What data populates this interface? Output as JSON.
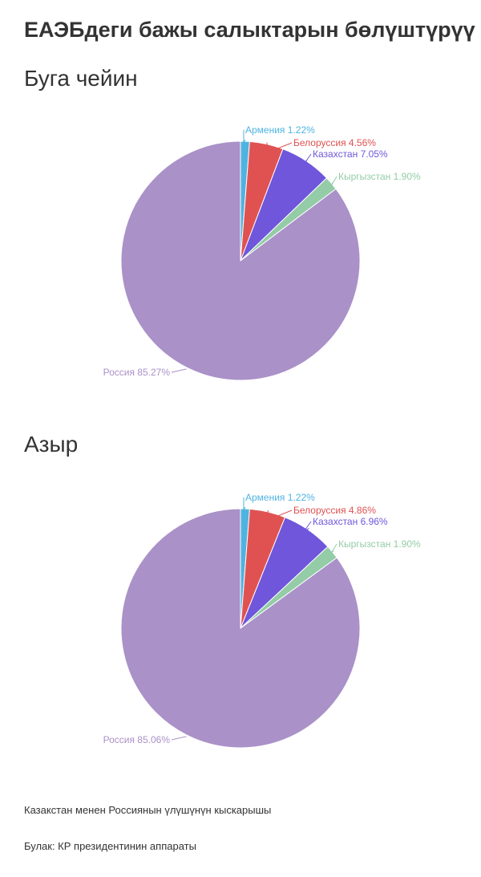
{
  "title": "ЕАЭБдеги бажы салыктарын бөлүштүрүү",
  "colors": {
    "Армения": "#4fb3e0",
    "Белоруссия": "#e05252",
    "Казахстан": "#6f56db",
    "Кыргызстан": "#93cca6",
    "Россия": "#aa91c8"
  },
  "chart_data": [
    {
      "type": "pie",
      "title": "Буга чейин",
      "labels": [
        "Армения",
        "Белоруссия",
        "Казахстан",
        "Кыргызстан",
        "Россия"
      ],
      "values": [
        1.22,
        4.56,
        7.05,
        1.9,
        85.27
      ],
      "value_labels": [
        "1.22%",
        "4.56%",
        "7.05%",
        "1.90%",
        "85.27%"
      ]
    },
    {
      "type": "pie",
      "title": "Азыр",
      "labels": [
        "Армения",
        "Белоруссия",
        "Казахстан",
        "Кыргызстан",
        "Россия"
      ],
      "values": [
        1.22,
        4.86,
        6.96,
        1.9,
        85.06
      ],
      "value_labels": [
        "1.22%",
        "4.86%",
        "6.96%",
        "1.90%",
        "85.06%"
      ]
    }
  ],
  "notes": {
    "subtitle_note": "Казакстан менен Россиянын үлүшүнүн кыскарышы",
    "source": "Булак: КР президентинин аппараты"
  }
}
